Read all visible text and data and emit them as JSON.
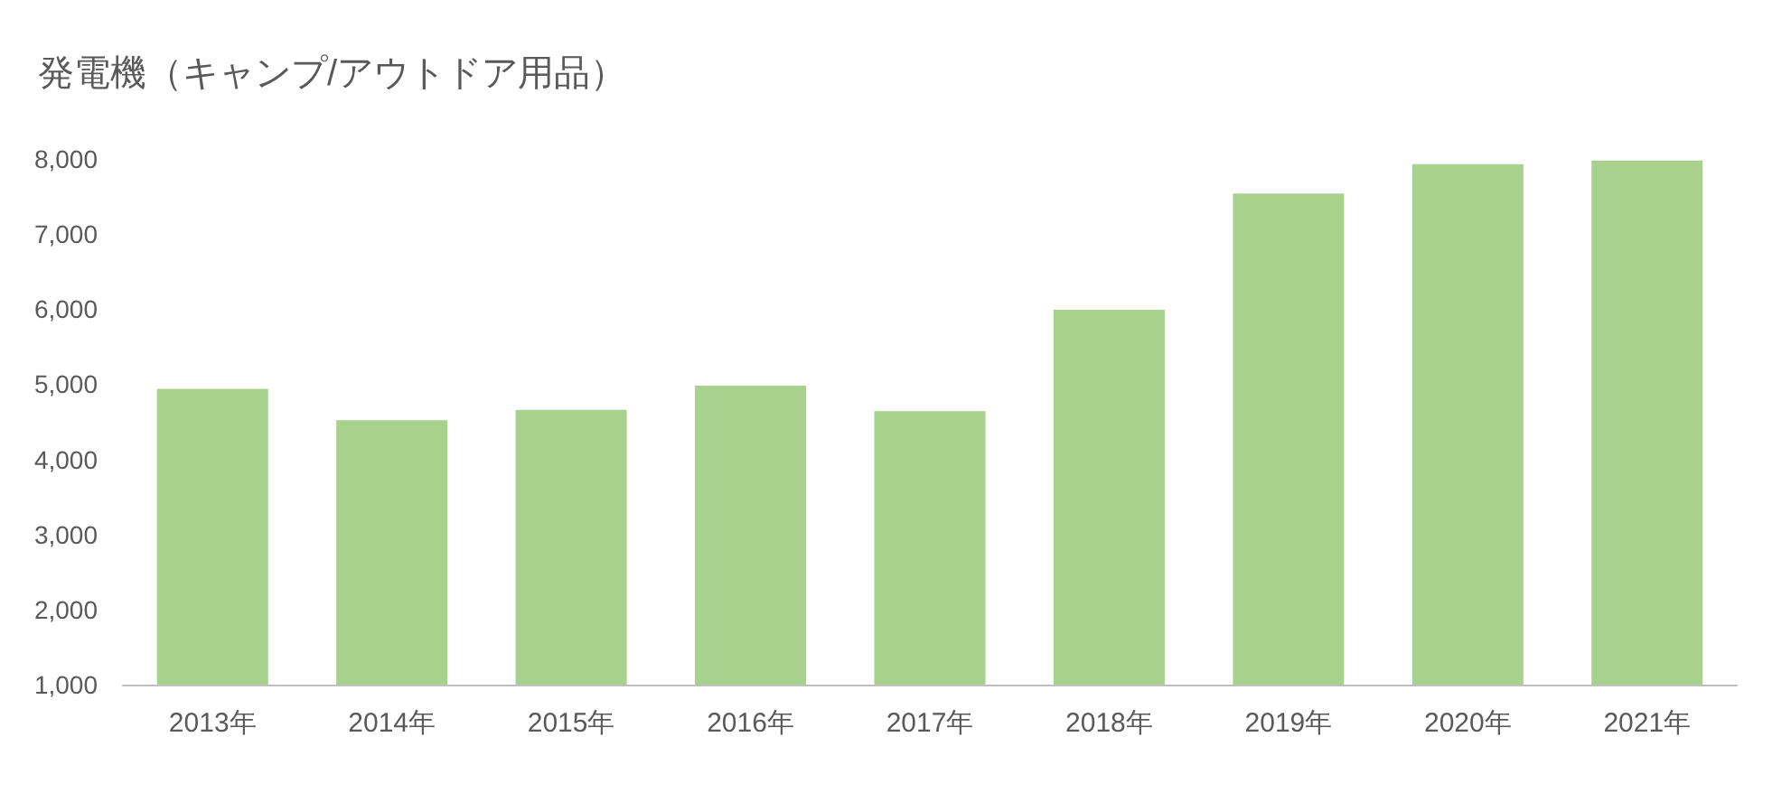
{
  "chart_data": {
    "type": "bar",
    "title": "発電機（キャンプ/アウトドア用品）",
    "categories": [
      "2013年",
      "2014年",
      "2015年",
      "2016年",
      "2017年",
      "2018年",
      "2019年",
      "2020年",
      "2021年"
    ],
    "values": [
      4940,
      4520,
      4660,
      4980,
      4640,
      5990,
      7540,
      7930,
      7980
    ],
    "color": "#a9d18e",
    "ylim": [
      1000,
      8000
    ],
    "yticks": [
      {
        "value": 1000,
        "label": "1,000"
      },
      {
        "value": 2000,
        "label": "2,000"
      },
      {
        "value": 3000,
        "label": "3,000"
      },
      {
        "value": 4000,
        "label": "4,000"
      },
      {
        "value": 5000,
        "label": "5,000"
      },
      {
        "value": 6000,
        "label": "6,000"
      },
      {
        "value": 7000,
        "label": "7,000"
      },
      {
        "value": 8000,
        "label": "8,000"
      }
    ],
    "grid": false
  }
}
